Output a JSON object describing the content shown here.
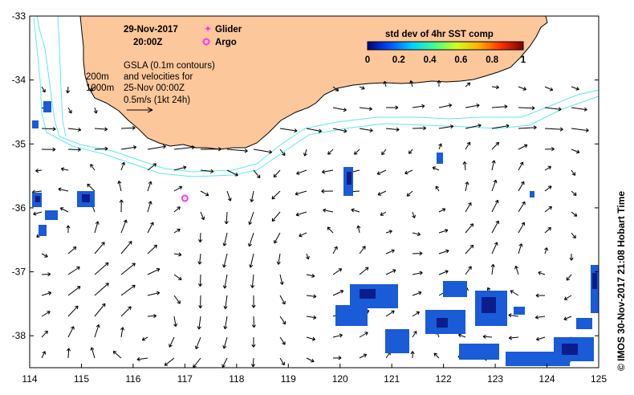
{
  "map": {
    "date": "29-Nov-2017",
    "time": "20:00Z",
    "legend_glider": "Glider",
    "legend_argo": "Argo",
    "gsla_lines": [
      "GSLA (0.1m contours)",
      "and velocities for",
      "25-Nov 00:00Z",
      "0.5m/s (1kt 24h)"
    ],
    "depth_labels": [
      "200m",
      "1000m"
    ],
    "colorbar_title": "std dev of 4hr SST comp",
    "colorbar_ticks": [
      "0",
      "0.2",
      "0.4",
      "0.6",
      "0.8",
      "1"
    ],
    "credit": "© IMOS 30-Nov-2017 21:08 Hobart Time",
    "x_ticks": [
      "114",
      "115",
      "116",
      "117",
      "118",
      "119",
      "120",
      "121",
      "122",
      "123",
      "124",
      "125"
    ],
    "y_ticks": [
      "-33",
      "-34",
      "-35",
      "-36",
      "-37",
      "-38"
    ],
    "lon_range": [
      114,
      125
    ],
    "lat_range": [
      -38.5,
      -33
    ],
    "argo_position": {
      "lon": 117.0,
      "lat": -35.85
    },
    "colors": {
      "land": "#fcc79a",
      "isobath": "#5fe8f0",
      "arrow": "#000000",
      "glider": "#ff33ff",
      "argo": "#ff33ff",
      "colormap": [
        "#000080",
        "#0050ff",
        "#00d0ff",
        "#40ff90",
        "#d0ff20",
        "#ffb000",
        "#ff3000",
        "#800000"
      ]
    }
  }
}
